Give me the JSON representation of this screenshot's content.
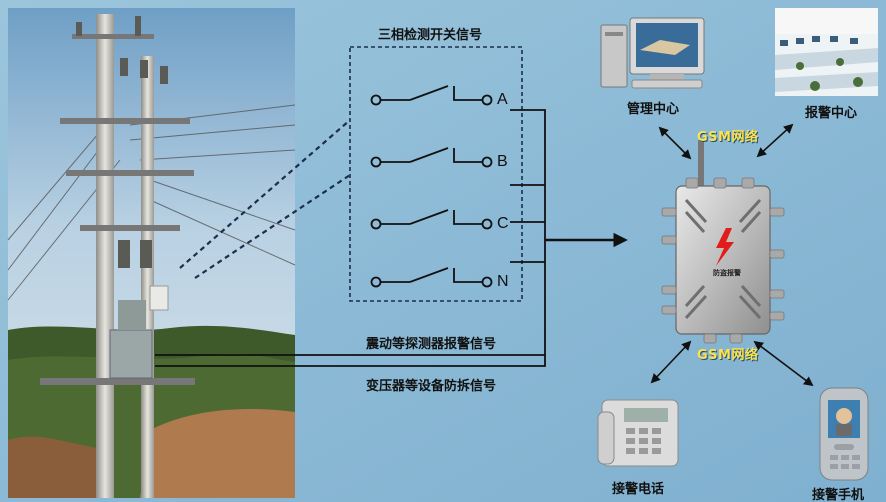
{
  "diagram": {
    "switch_group_title": "三相检测开关信号",
    "phase_labels": [
      "A",
      "B",
      "C",
      "N"
    ],
    "signal_vibration": "震动等探测器报警信号",
    "signal_tamper": "变压器等设备防拆信号",
    "gsm_label_top": "GSM网络",
    "gsm_label_bottom": "GSM网络",
    "node_management": "管理中心",
    "node_alarm_center": "报警中心",
    "node_phone": "接警电话",
    "node_mobile": "接警手机",
    "device_label": "防盗报警"
  },
  "colors": {
    "panel_blue": "#8fbcd6",
    "gsm_text": "#ffe14a",
    "alarm_red": "#e31b1b"
  }
}
